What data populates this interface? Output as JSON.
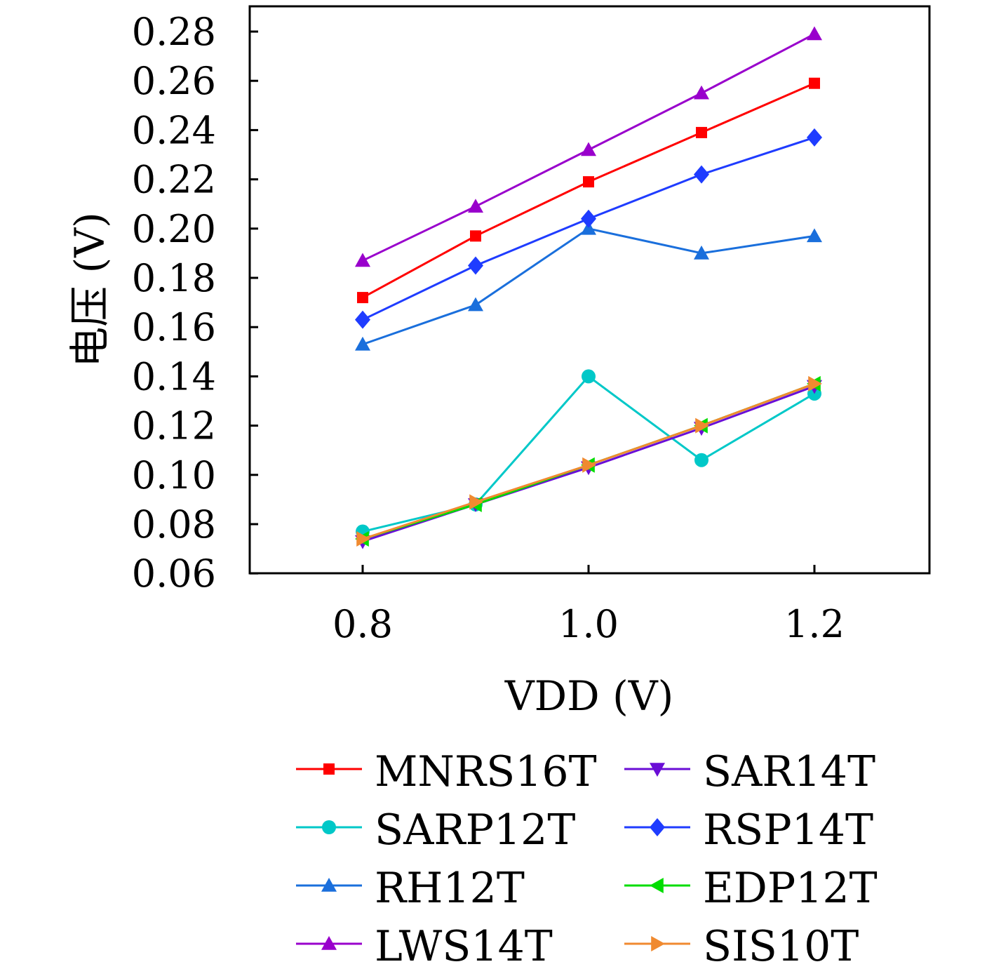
{
  "chart_data": {
    "type": "line",
    "title": "",
    "xlabel": "VDD (V)",
    "ylabel": "电压 (V)",
    "xlim": [
      0.7,
      1.3
    ],
    "ylim": [
      0.06,
      0.29
    ],
    "xticks": [
      "0.8",
      "1.0",
      "1.2"
    ],
    "xtick_values": [
      0.8,
      1.0,
      1.2
    ],
    "yticks": [
      "0.06",
      "0.08",
      "0.10",
      "0.12",
      "0.14",
      "0.16",
      "0.18",
      "0.20",
      "0.22",
      "0.24",
      "0.26",
      "0.28"
    ],
    "ytick_values": [
      0.06,
      0.08,
      0.1,
      0.12,
      0.14,
      0.16,
      0.18,
      0.2,
      0.22,
      0.24,
      0.26,
      0.28
    ],
    "x": [
      0.8,
      0.9,
      1.0,
      1.1,
      1.2
    ],
    "legend_placement": "bottom, below chart, 2 columns",
    "series": [
      {
        "name": "MNRS16T",
        "color": "#ff0000",
        "marker": "square",
        "values": [
          0.172,
          0.197,
          0.219,
          0.239,
          0.259
        ]
      },
      {
        "name": "SARP12T",
        "color": "#00c8c8",
        "marker": "circle",
        "values": [
          0.077,
          0.088,
          0.14,
          0.106,
          0.133
        ]
      },
      {
        "name": "RH12T",
        "color": "#1a6fdc",
        "marker": "triangle-up",
        "values": [
          0.153,
          0.169,
          0.2,
          0.19,
          0.197
        ]
      },
      {
        "name": "LWS14T",
        "color": "#9900cc",
        "marker": "triangle-up",
        "values": [
          0.187,
          0.209,
          0.232,
          0.255,
          0.279
        ]
      },
      {
        "name": "SAR14T",
        "color": "#6a0dd6",
        "marker": "triangle-down",
        "values": [
          0.073,
          0.088,
          0.103,
          0.119,
          0.136
        ]
      },
      {
        "name": "RSP14T",
        "color": "#1f3cff",
        "marker": "diamond",
        "values": [
          0.163,
          0.185,
          0.204,
          0.222,
          0.237
        ]
      },
      {
        "name": "EDP12T",
        "color": "#00dd00",
        "marker": "triangle-left",
        "values": [
          0.074,
          0.088,
          0.104,
          0.12,
          0.137
        ]
      },
      {
        "name": "SIS10T",
        "color": "#f08a30",
        "marker": "triangle-right",
        "values": [
          0.074,
          0.089,
          0.104,
          0.12,
          0.137
        ]
      }
    ]
  }
}
